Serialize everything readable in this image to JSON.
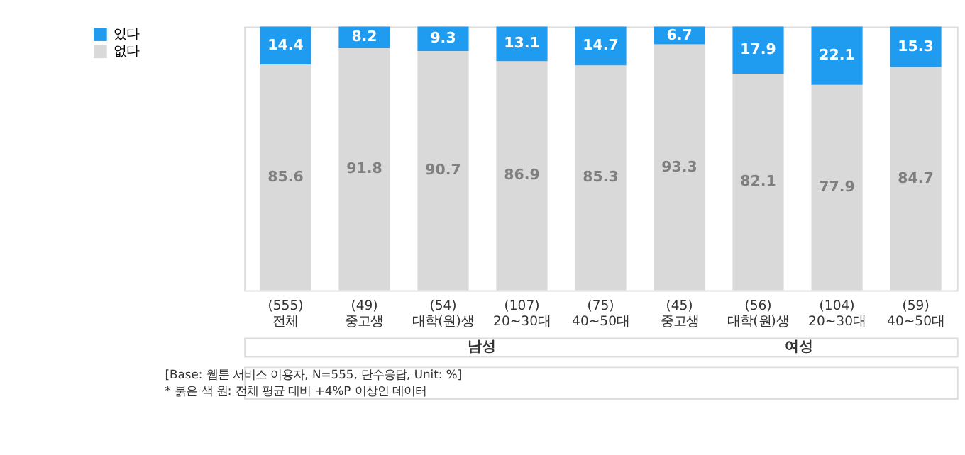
{
  "chart_data": {
    "type": "bar",
    "stacked": true,
    "data_labels": true,
    "legend": "left",
    "categories": [
      "전체",
      "중고생",
      "대학(원)생",
      "20~30대",
      "40~50대",
      "중고생",
      "대학(원)생",
      "20~30대",
      "40~50대"
    ],
    "series": [
      {
        "name": "없다",
        "color": "#d9d9d9",
        "values": [
          85.6,
          91.8,
          90.7,
          86.9,
          85.3,
          93.3,
          82.1,
          77.9,
          84.7
        ]
      },
      {
        "name": "있다",
        "color": "#1f9bf0",
        "values": [
          14.4,
          8.2,
          9.3,
          13.1,
          14.7,
          6.7,
          17.9,
          22.1,
          15.3
        ]
      }
    ],
    "annotations": [
      "(555)",
      "(49)",
      "(54)",
      "(107)",
      "(75)",
      "(45)",
      "(56)",
      "(104)",
      "(59)",
      "남성",
      "여성",
      "[Base: 웹툰 서비스 이용자, N=555, 단수응답, Unit: %]",
      "* 붉은 색 원: 전체 평균 대비 +4%P 이상인 데이터"
    ]
  }
}
